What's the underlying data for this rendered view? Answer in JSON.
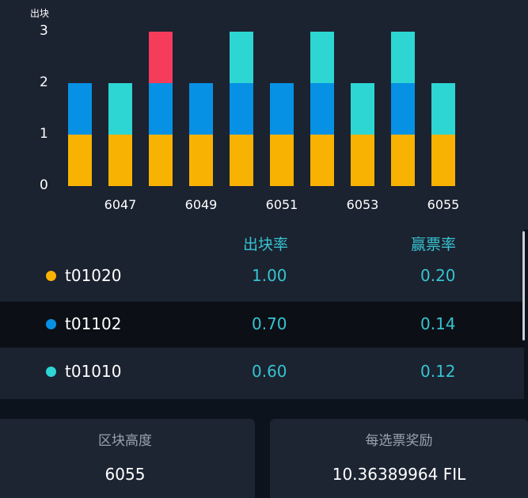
{
  "colors": {
    "yellow": "#f8b202",
    "blue": "#0791e4",
    "teal": "#2dd6d3",
    "red": "#f53d5b",
    "accent_text": "#37c3d0"
  },
  "chart_data": {
    "type": "bar",
    "stacked": true,
    "ylabel": "出块",
    "ylim": [
      0,
      3
    ],
    "yticks": [
      "0",
      "1",
      "2",
      "3"
    ],
    "categories": [
      "6046",
      "6047",
      "6048",
      "6049",
      "6050",
      "6051",
      "6052",
      "6053",
      "6054",
      "6055"
    ],
    "xtick_labels": [
      "6047",
      "6049",
      "6051",
      "6053",
      "6055"
    ],
    "grid": false,
    "series": [
      {
        "name": "t01020",
        "color": "#f8b202",
        "values": [
          1,
          1,
          1,
          1,
          1,
          1,
          1,
          1,
          1,
          1
        ]
      },
      {
        "name": "t01102",
        "color": "#0791e4",
        "values": [
          1,
          0,
          1,
          1,
          1,
          1,
          1,
          0,
          1,
          0
        ]
      },
      {
        "name": "t01010",
        "color": "#2dd6d3",
        "values": [
          0,
          1,
          0,
          0,
          1,
          0,
          1,
          1,
          1,
          1
        ]
      },
      {
        "color": "#f53d5b",
        "values": [
          0,
          0,
          1,
          0,
          0,
          0,
          0,
          0,
          0,
          0
        ]
      }
    ]
  },
  "table": {
    "headers": {
      "rate": "出块率",
      "win": "赢票率"
    },
    "rows": [
      {
        "miner": "t01020",
        "color": "#f8b202",
        "rate": "1.00",
        "win": "0.20"
      },
      {
        "miner": "t01102",
        "color": "#0791e4",
        "rate": "0.70",
        "win": "0.14"
      },
      {
        "miner": "t01010",
        "color": "#2dd6d3",
        "rate": "0.60",
        "win": "0.12"
      }
    ]
  },
  "cards": {
    "height_label": "区块高度",
    "height_value": "6055",
    "reward_label": "每选票奖励",
    "reward_value": "10.36389964 FIL"
  }
}
